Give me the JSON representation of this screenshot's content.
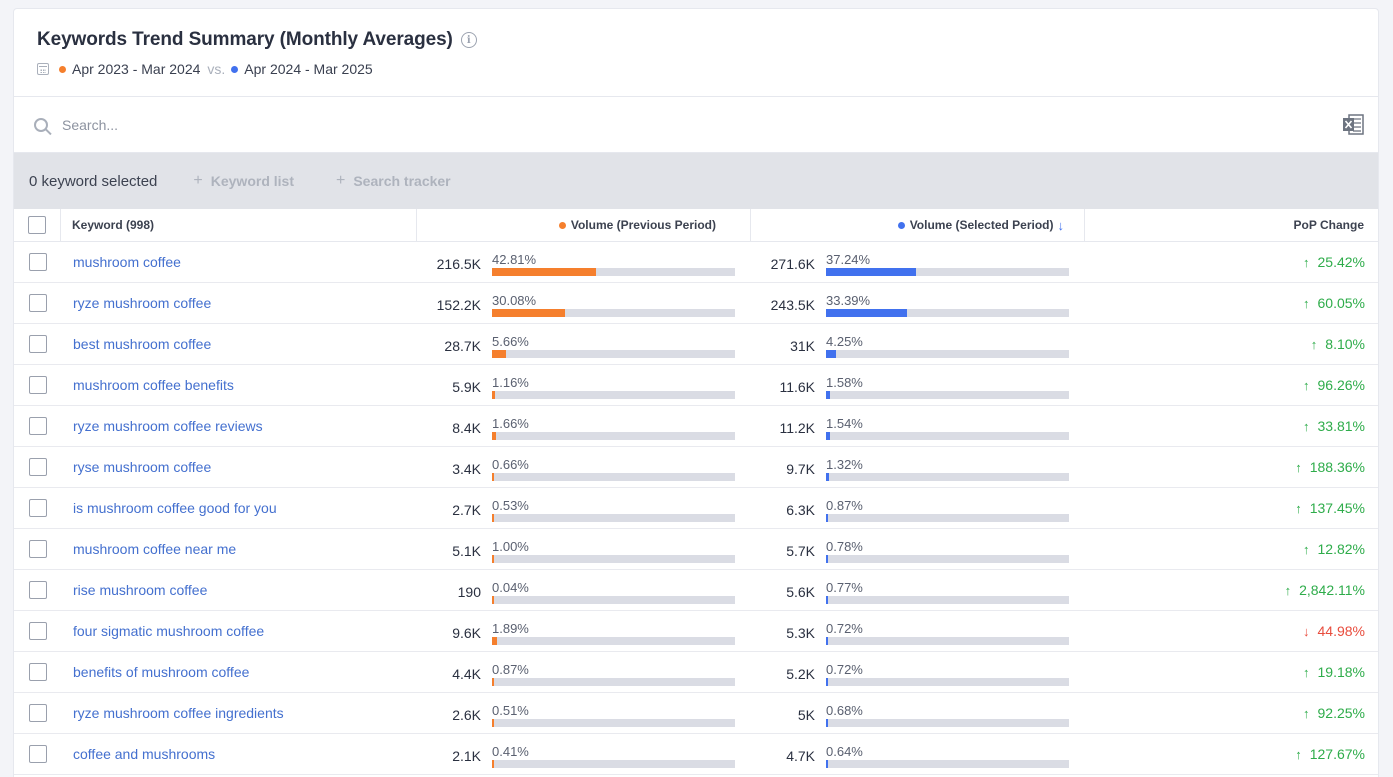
{
  "header": {
    "title": "Keywords Trend Summary (Monthly Averages)",
    "period_prev": "Apr 2023 - Mar 2024",
    "vs": "vs.",
    "period_sel": "Apr 2024 - Mar 2025"
  },
  "search": {
    "placeholder": "Search..."
  },
  "toolbar": {
    "selected_count": "0 keyword selected",
    "keyword_list": "Keyword list",
    "search_tracker": "Search tracker"
  },
  "columns": {
    "keyword": "Keyword (998)",
    "prev": "Volume (Previous Period)",
    "sel": "Volume (Selected Period)",
    "pop": "PoP Change"
  },
  "colors": {
    "prev": "#f57f2d",
    "sel": "#4171ee",
    "up": "#2eac4a",
    "down": "#e84c3d"
  },
  "rows": [
    {
      "keyword": "mushroom coffee",
      "prev_vol": "216.5K",
      "prev_pct": "42.81%",
      "prev_share": 42.81,
      "sel_vol": "271.6K",
      "sel_pct": "37.24%",
      "sel_share": 37.24,
      "pop": "25.42%",
      "dir": "up"
    },
    {
      "keyword": "ryze mushroom coffee",
      "prev_vol": "152.2K",
      "prev_pct": "30.08%",
      "prev_share": 30.08,
      "sel_vol": "243.5K",
      "sel_pct": "33.39%",
      "sel_share": 33.39,
      "pop": "60.05%",
      "dir": "up"
    },
    {
      "keyword": "best mushroom coffee",
      "prev_vol": "28.7K",
      "prev_pct": "5.66%",
      "prev_share": 5.66,
      "sel_vol": "31K",
      "sel_pct": "4.25%",
      "sel_share": 4.25,
      "pop": "8.10%",
      "dir": "up"
    },
    {
      "keyword": "mushroom coffee benefits",
      "prev_vol": "5.9K",
      "prev_pct": "1.16%",
      "prev_share": 1.16,
      "sel_vol": "11.6K",
      "sel_pct": "1.58%",
      "sel_share": 1.58,
      "pop": "96.26%",
      "dir": "up"
    },
    {
      "keyword": "ryze mushroom coffee reviews",
      "prev_vol": "8.4K",
      "prev_pct": "1.66%",
      "prev_share": 1.66,
      "sel_vol": "11.2K",
      "sel_pct": "1.54%",
      "sel_share": 1.54,
      "pop": "33.81%",
      "dir": "up"
    },
    {
      "keyword": "ryse mushroom coffee",
      "prev_vol": "3.4K",
      "prev_pct": "0.66%",
      "prev_share": 0.66,
      "sel_vol": "9.7K",
      "sel_pct": "1.32%",
      "sel_share": 1.32,
      "pop": "188.36%",
      "dir": "up"
    },
    {
      "keyword": "is mushroom coffee good for you",
      "prev_vol": "2.7K",
      "prev_pct": "0.53%",
      "prev_share": 0.53,
      "sel_vol": "6.3K",
      "sel_pct": "0.87%",
      "sel_share": 0.87,
      "pop": "137.45%",
      "dir": "up"
    },
    {
      "keyword": "mushroom coffee near me",
      "prev_vol": "5.1K",
      "prev_pct": "1.00%",
      "prev_share": 1.0,
      "sel_vol": "5.7K",
      "sel_pct": "0.78%",
      "sel_share": 0.78,
      "pop": "12.82%",
      "dir": "up"
    },
    {
      "keyword": "rise mushroom coffee",
      "prev_vol": "190",
      "prev_pct": "0.04%",
      "prev_share": 0.04,
      "sel_vol": "5.6K",
      "sel_pct": "0.77%",
      "sel_share": 0.77,
      "pop": "2,842.11%",
      "dir": "up"
    },
    {
      "keyword": "four sigmatic mushroom coffee",
      "prev_vol": "9.6K",
      "prev_pct": "1.89%",
      "prev_share": 1.89,
      "sel_vol": "5.3K",
      "sel_pct": "0.72%",
      "sel_share": 0.72,
      "pop": "44.98%",
      "dir": "down"
    },
    {
      "keyword": "benefits of mushroom coffee",
      "prev_vol": "4.4K",
      "prev_pct": "0.87%",
      "prev_share": 0.87,
      "sel_vol": "5.2K",
      "sel_pct": "0.72%",
      "sel_share": 0.72,
      "pop": "19.18%",
      "dir": "up"
    },
    {
      "keyword": "ryze mushroom coffee ingredients",
      "prev_vol": "2.6K",
      "prev_pct": "0.51%",
      "prev_share": 0.51,
      "sel_vol": "5K",
      "sel_pct": "0.68%",
      "sel_share": 0.68,
      "pop": "92.25%",
      "dir": "up"
    },
    {
      "keyword": "coffee and mushrooms",
      "prev_vol": "2.1K",
      "prev_pct": "0.41%",
      "prev_share": 0.41,
      "sel_vol": "4.7K",
      "sel_pct": "0.64%",
      "sel_share": 0.64,
      "pop": "127.67%",
      "dir": "up"
    }
  ]
}
